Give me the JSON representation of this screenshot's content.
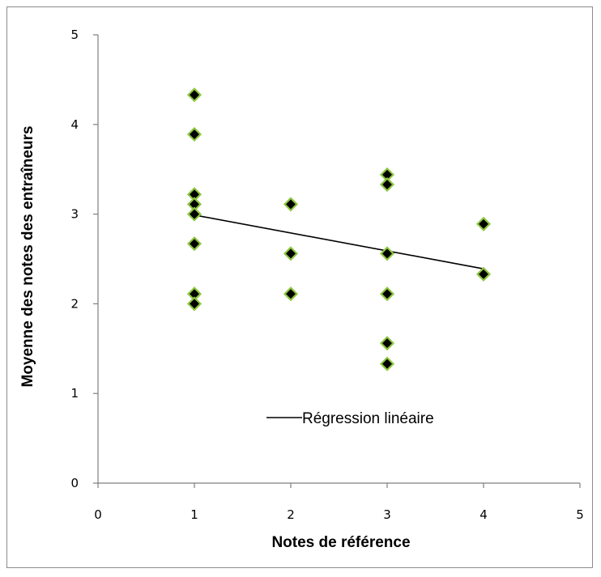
{
  "chart_data": {
    "type": "scatter",
    "title": "",
    "xlabel": "Notes de référence",
    "ylabel": "Moyenne des notes des entraîneurs",
    "xlim": [
      0,
      5
    ],
    "ylim": [
      0,
      5
    ],
    "x_ticks": [
      "0",
      "1",
      "2",
      "3",
      "4",
      "5"
    ],
    "y_ticks": [
      "0",
      "1",
      "2",
      "3",
      "4",
      "5"
    ],
    "grid": false,
    "legend_position": "bottom-center",
    "points": [
      {
        "x": 1,
        "y": 4.33
      },
      {
        "x": 1,
        "y": 3.89
      },
      {
        "x": 1,
        "y": 3.22
      },
      {
        "x": 1,
        "y": 3.11
      },
      {
        "x": 1,
        "y": 3.0
      },
      {
        "x": 1,
        "y": 2.67
      },
      {
        "x": 1,
        "y": 2.11
      },
      {
        "x": 1,
        "y": 2.0
      },
      {
        "x": 2,
        "y": 3.11
      },
      {
        "x": 2,
        "y": 2.56
      },
      {
        "x": 2,
        "y": 2.11
      },
      {
        "x": 3,
        "y": 3.44
      },
      {
        "x": 3,
        "y": 3.33
      },
      {
        "x": 3,
        "y": 2.56
      },
      {
        "x": 3,
        "y": 2.11
      },
      {
        "x": 3,
        "y": 1.56
      },
      {
        "x": 3,
        "y": 1.33
      },
      {
        "x": 4,
        "y": 2.89
      },
      {
        "x": 4,
        "y": 2.33
      }
    ],
    "trendline": {
      "name": "Régression linéaire",
      "x_start": 1,
      "y_start": 2.99,
      "x_end": 4,
      "y_end": 2.39
    },
    "colors": {
      "marker_fill": "#000000",
      "marker_edge": "#8dc63f",
      "trendline": "#000000",
      "axis": "#7f7f7f"
    }
  }
}
